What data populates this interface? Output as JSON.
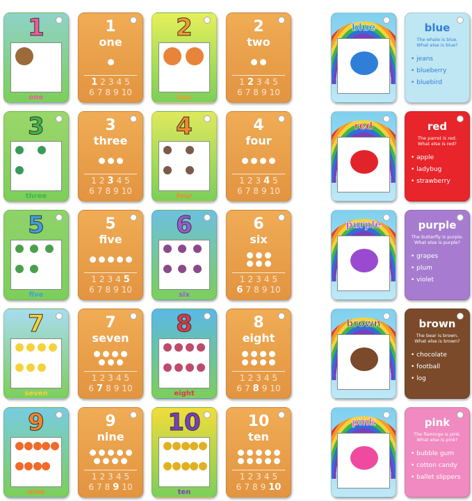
{
  "numbers": [
    {
      "number": 1,
      "word": "one"
    },
    {
      "number": 2,
      "word": "two"
    },
    {
      "number": 3,
      "word": "three"
    },
    {
      "number": 4,
      "word": "four"
    },
    {
      "number": 5,
      "word": "five"
    },
    {
      "number": 6,
      "word": "six"
    },
    {
      "number": 7,
      "word": "seven"
    },
    {
      "number": 8,
      "word": "eight"
    },
    {
      "number": 9,
      "word": "nine"
    },
    {
      "number": 10,
      "word": "ten"
    }
  ],
  "number_strip": [
    1,
    2,
    3,
    4,
    5,
    6,
    7,
    8,
    9,
    10
  ],
  "colors": [
    {
      "name": "blue",
      "sentence": "The whale is blue.",
      "question": "What else is blue?",
      "items": [
        "jeans",
        "blueberry",
        "bluebird"
      ]
    },
    {
      "name": "red",
      "sentence": "The parrot is red.",
      "question": "What else is red?",
      "items": [
        "apple",
        "ladybug",
        "strawberry"
      ]
    },
    {
      "name": "purple",
      "sentence": "The butterfly is purple.",
      "question": "What else is purple?",
      "items": [
        "grapes",
        "plum",
        "violet"
      ]
    },
    {
      "name": "brown",
      "sentence": "The bear is brown.",
      "question": "What else is brown?",
      "items": [
        "chocolate",
        "football",
        "log"
      ]
    },
    {
      "name": "pink",
      "sentence": "The flamingo is pink.",
      "question": "What else is pink?",
      "items": [
        "bubble gum",
        "cotton candy",
        "ballet slippers"
      ]
    }
  ]
}
